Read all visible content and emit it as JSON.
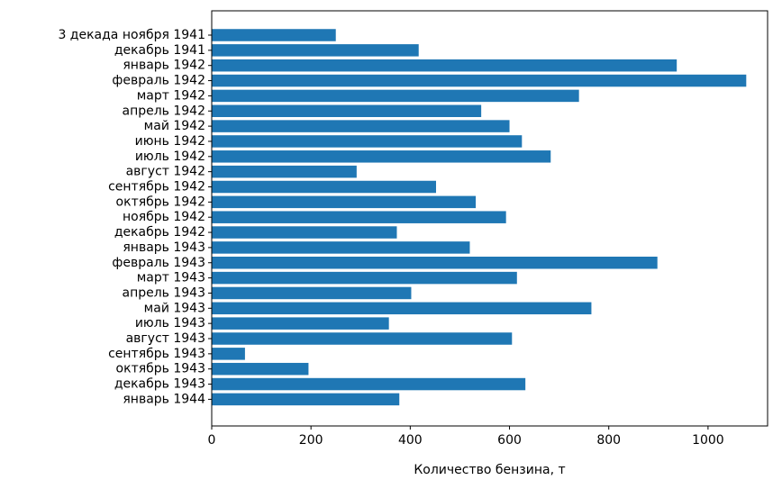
{
  "chart_data": {
    "type": "bar",
    "orientation": "horizontal",
    "categories": [
      "3 декада ноября 1941",
      "декабрь 1941",
      "январь 1942",
      "февраль 1942",
      "март 1942",
      "апрель 1942",
      "май 1942",
      "июнь 1942",
      "июль 1942",
      "август 1942",
      "сентябрь 1942",
      "октябрь 1942",
      "ноябрь 1942",
      "декабрь 1942",
      "январь 1943",
      "февраль 1943",
      "март 1943",
      "апрель 1943",
      "май 1943",
      "июль 1943",
      "август 1943",
      "сентябрь 1943",
      "октябрь 1943",
      "декабрь 1943",
      "январь 1944"
    ],
    "values": [
      250,
      417,
      937,
      1077,
      740,
      543,
      600,
      625,
      683,
      292,
      452,
      532,
      593,
      373,
      520,
      898,
      615,
      402,
      765,
      357,
      605,
      67,
      195,
      632,
      378
    ],
    "title": "",
    "xlabel": "Количество бензина, т",
    "ylabel": "",
    "xlim": [
      0,
      1120
    ],
    "xticks": [
      "0",
      "200",
      "400",
      "600",
      "800",
      "1000"
    ],
    "bar_color": "#1f77b4",
    "grid": false,
    "legend": "none"
  }
}
